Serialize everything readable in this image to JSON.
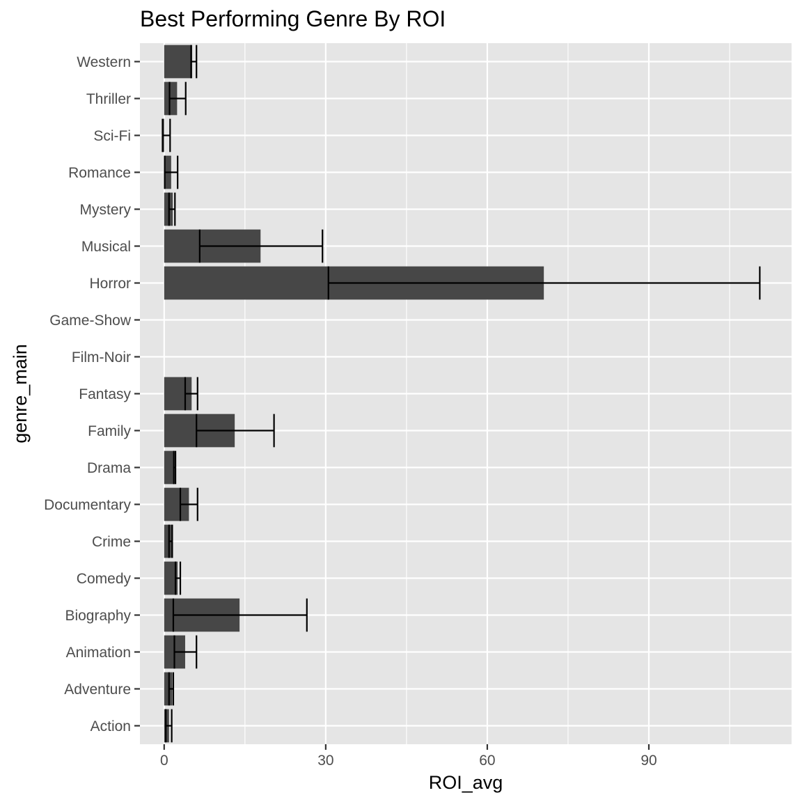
{
  "chart_data": {
    "type": "bar",
    "orientation": "horizontal",
    "title": "Best Performing Genre By ROI",
    "xlabel": "ROI_avg",
    "ylabel": "genre_main",
    "xlim": [
      -4.5,
      116.5
    ],
    "x_major_ticks": [
      0,
      30,
      60,
      90
    ],
    "x_minor_ticks": [
      15,
      45,
      75,
      105
    ],
    "grid": true,
    "legend": "none",
    "colors": {
      "panel": "#e5e5e5",
      "grid": "#ffffff",
      "bar": "#474747",
      "errorbar": "#000000",
      "tick_text": "#4d4d4d",
      "tick_mark": "#333333"
    },
    "categories": [
      "Action",
      "Adventure",
      "Animation",
      "Biography",
      "Comedy",
      "Crime",
      "Documentary",
      "Drama",
      "Family",
      "Fantasy",
      "Film-Noir",
      "Game-Show",
      "Horror",
      "Musical",
      "Mystery",
      "Romance",
      "Sci-Fi",
      "Thriller",
      "Western"
    ],
    "values": [
      0.9,
      1.5,
      3.9,
      14.0,
      2.5,
      1.5,
      4.6,
      1.9,
      13.1,
      5.1,
      null,
      null,
      70.5,
      17.9,
      1.6,
      1.3,
      -0.3,
      2.4,
      5.2
    ],
    "error_low": [
      0.3,
      0.9,
      1.9,
      1.7,
      2.1,
      0.9,
      3.0,
      1.8,
      6.0,
      3.9,
      null,
      null,
      30.5,
      6.6,
      0.9,
      0.1,
      -0.3,
      1.0,
      5.0
    ],
    "error_high": [
      1.4,
      1.7,
      6.0,
      26.5,
      3.0,
      1.5,
      6.2,
      2.1,
      20.4,
      6.2,
      null,
      null,
      110.6,
      29.4,
      2.0,
      2.5,
      1.1,
      4.0,
      6.0
    ]
  }
}
